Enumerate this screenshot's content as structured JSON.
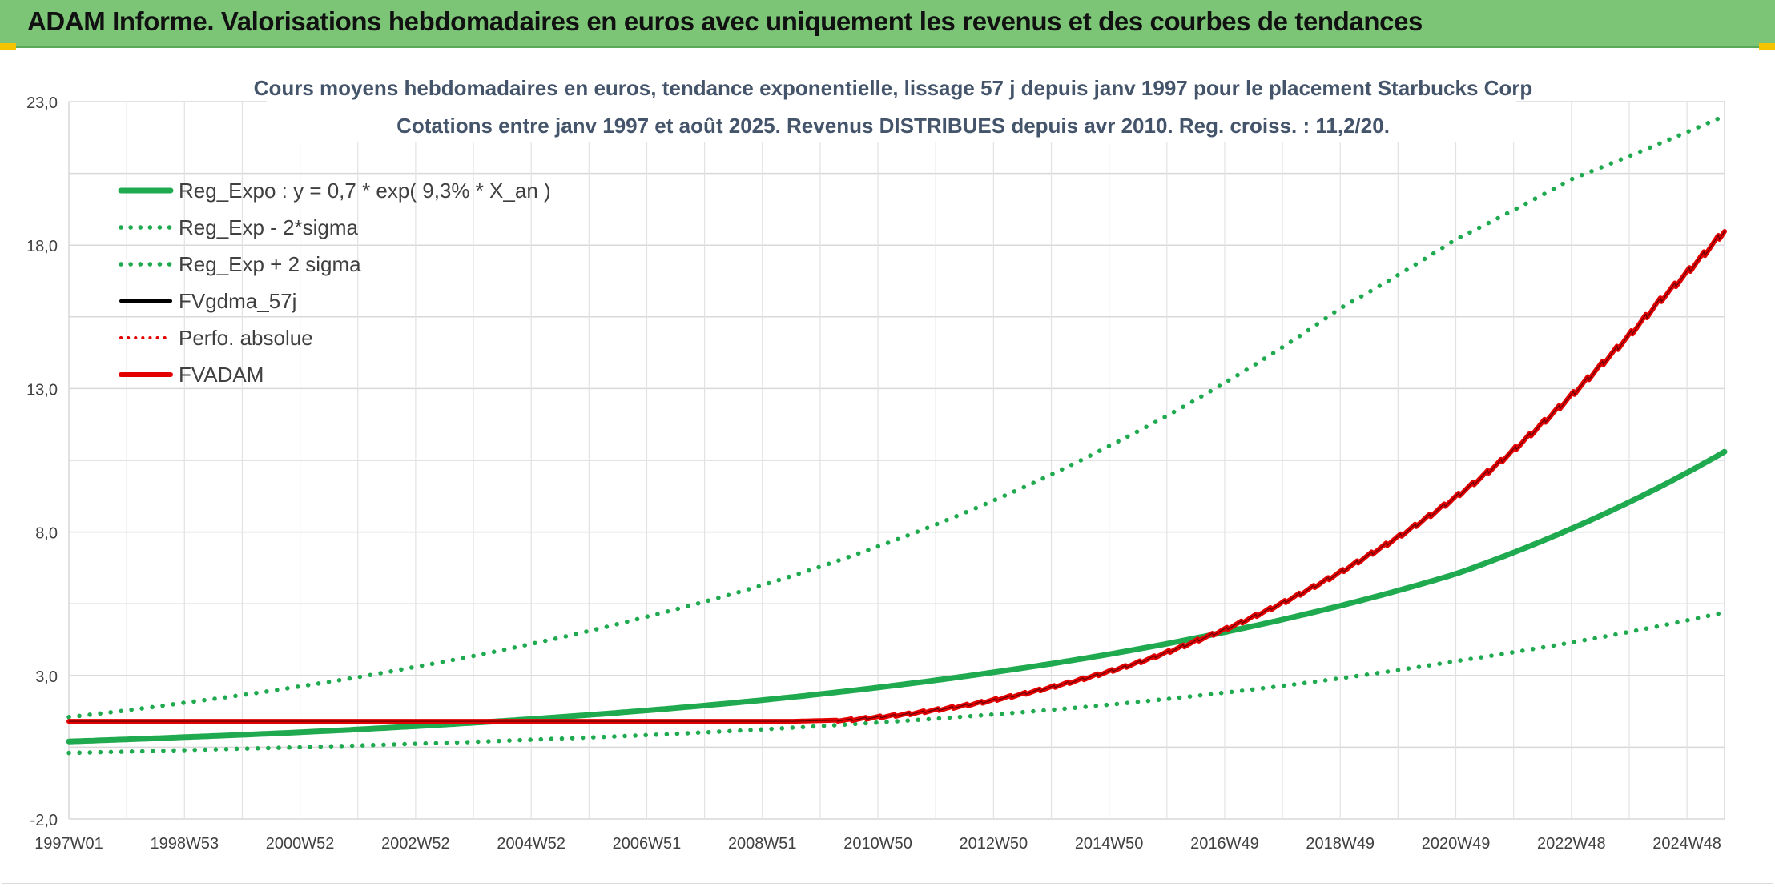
{
  "header": {
    "title": "ADAM Informe. Valorisations hebdomadaires en euros avec uniquement les revenus et des courbes de tendances"
  },
  "colors": {
    "header_bg": "#7cc576",
    "reg_green": "#1faa4f",
    "adam_red": "#e30000",
    "fv_black": "#000000",
    "grid": "#d9d9d9"
  },
  "chart_data": {
    "type": "line",
    "title": "Cours moyens hebdomadaires en euros, tendance exponentielle, lissage 57 j depuis janv 1997 pour le placement Starbucks Corp",
    "subtitle": "Cotations entre janv 1997 et août 2025. Revenus DISTRIBUES depuis avr 2010. Reg. croiss. : 11,2/20.",
    "xlabel": "",
    "ylabel": "",
    "ylim": [
      -2.0,
      23.0
    ],
    "y_ticks": [
      "23,0",
      "18,0",
      "13,0",
      "8,0",
      "3,0",
      "-2,0"
    ],
    "y_tick_values": [
      23,
      18,
      13,
      8,
      3,
      -2
    ],
    "x_range": [
      1997.0,
      2025.65
    ],
    "x_tick_labels": [
      "1997W01",
      "1998W53",
      "2000W52",
      "2002W52",
      "2004W52",
      "2006W51",
      "2008W51",
      "2010W50",
      "2012W50",
      "2014W50",
      "2016W49",
      "2018W49",
      "2020W49",
      "2022W48",
      "2024W48"
    ],
    "x_tick_years": [
      1997.0,
      1999.0,
      2001.0,
      2003.0,
      2005.0,
      2007.0,
      2009.0,
      2011.0,
      2013.0,
      2015.0,
      2017.0,
      2019.0,
      2021.0,
      2023.0,
      2025.0
    ],
    "grid": true,
    "legend_position": "top-left",
    "series": [
      {
        "name": "Reg_Expo : y = 0,7 * exp( 9,3% *  X_an )",
        "style": "solid-thick",
        "color": "#1faa4f",
        "x": [
          1997.0,
          1999.0,
          2001.0,
          2003.0,
          2005.0,
          2007.0,
          2009.0,
          2011.0,
          2013.0,
          2015.0,
          2017.0,
          2019.0,
          2021.0,
          2023.0,
          2025.65
        ],
        "y": [
          0.7,
          0.85,
          1.02,
          1.23,
          1.48,
          1.78,
          2.14,
          2.58,
          3.11,
          3.74,
          4.51,
          5.43,
          6.54,
          8.12,
          10.8
        ]
      },
      {
        "name": "Reg_Exp - 2*sigma",
        "style": "dotted",
        "color": "#1faa4f",
        "x": [
          1997.0,
          1999.0,
          2001.0,
          2003.0,
          2005.0,
          2007.0,
          2009.0,
          2011.0,
          2013.0,
          2015.0,
          2017.0,
          2019.0,
          2021.0,
          2023.0,
          2025.65
        ],
        "y": [
          0.3,
          0.4,
          0.5,
          0.62,
          0.76,
          0.92,
          1.12,
          1.36,
          1.64,
          1.98,
          2.4,
          2.9,
          3.5,
          4.15,
          5.2
        ]
      },
      {
        "name": "Reg_Exp + 2 sigma",
        "style": "dotted",
        "color": "#1faa4f",
        "x": [
          1997.0,
          1999.0,
          2001.0,
          2003.0,
          2005.0,
          2007.0,
          2009.0,
          2011.0,
          2013.0,
          2015.0,
          2017.0,
          2019.0,
          2021.0,
          2023.0,
          2025.65
        ],
        "y": [
          1.55,
          2.05,
          2.62,
          3.3,
          4.1,
          5.05,
          6.15,
          7.5,
          9.1,
          11.0,
          13.2,
          15.8,
          18.2,
          20.3,
          22.5
        ]
      },
      {
        "name": "FVgdma_57j",
        "style": "solid",
        "color": "#000000",
        "x": [
          1997.0,
          2009.5,
          2010.5,
          2011.5,
          2012.5,
          2013.5,
          2014.5,
          2015.5,
          2016.5,
          2017.5,
          2018.5,
          2019.5,
          2020.5,
          2021.5,
          2022.5,
          2023.5,
          2024.5,
          2025.65
        ],
        "y": [
          1.4,
          1.4,
          1.45,
          1.65,
          1.95,
          2.35,
          2.85,
          3.45,
          4.2,
          5.05,
          6.05,
          7.2,
          8.5,
          10.0,
          11.8,
          13.8,
          16.0,
          18.5
        ]
      },
      {
        "name": "Perfo. absolue",
        "style": "dotted",
        "color": "#e30000",
        "x": [],
        "y": []
      },
      {
        "name": "FVADAM",
        "style": "solid-thick-stepped",
        "color": "#e30000",
        "x": [
          1997.0,
          2009.5,
          2010.5,
          2011.5,
          2012.5,
          2013.5,
          2014.5,
          2015.5,
          2016.5,
          2017.5,
          2018.5,
          2019.5,
          2020.5,
          2021.5,
          2022.5,
          2023.5,
          2024.5,
          2025.65
        ],
        "y": [
          1.4,
          1.4,
          1.45,
          1.65,
          1.95,
          2.35,
          2.85,
          3.45,
          4.2,
          5.05,
          6.05,
          7.2,
          8.5,
          10.0,
          11.8,
          13.8,
          16.0,
          18.5
        ]
      }
    ]
  }
}
